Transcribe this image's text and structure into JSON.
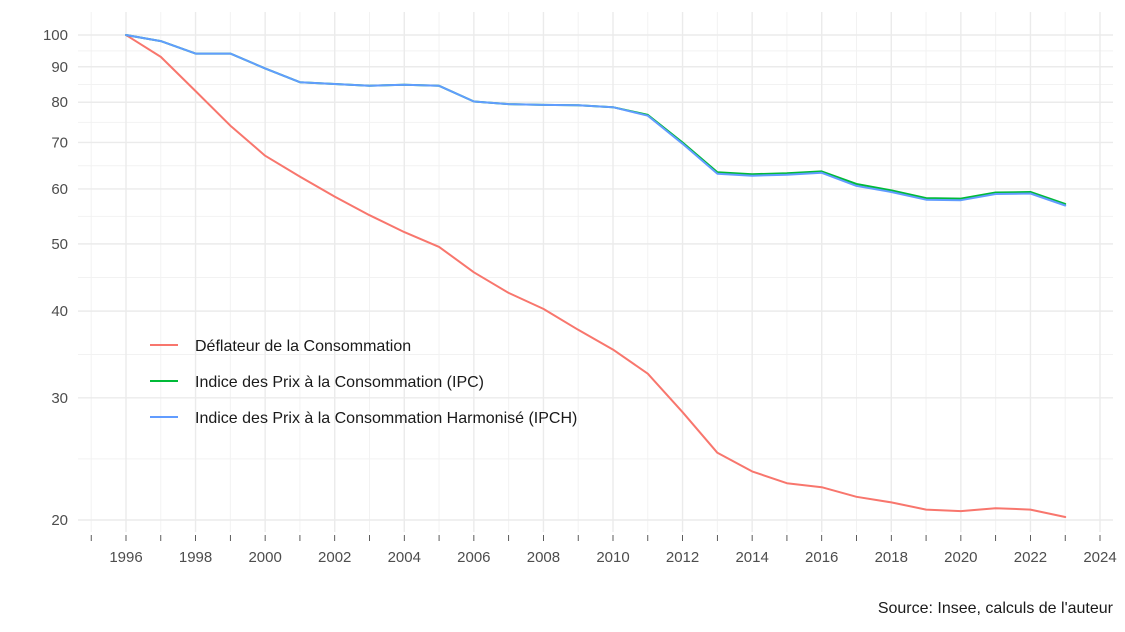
{
  "chart_data": {
    "type": "line",
    "title": "",
    "xlabel": "",
    "ylabel": "",
    "y_scale": "log",
    "xlim": [
      1995,
      2024.5
    ],
    "ylim": [
      19,
      106
    ],
    "x_ticks": [
      1996,
      1998,
      2000,
      2002,
      2004,
      2006,
      2008,
      2010,
      2012,
      2014,
      2016,
      2018,
      2020,
      2022,
      2024
    ],
    "y_ticks": [
      20,
      30,
      40,
      50,
      60,
      70,
      80,
      90,
      100
    ],
    "grid": true,
    "legend_position": "left-middle",
    "x": [
      1996,
      1997,
      1998,
      1999,
      2000,
      2001,
      2002,
      2003,
      2004,
      2005,
      2006,
      2007,
      2008,
      2009,
      2010,
      2011,
      2012,
      2013,
      2014,
      2015,
      2016,
      2017,
      2018,
      2019,
      2020,
      2021,
      2022,
      2023
    ],
    "series": [
      {
        "name": "Déflateur de la Consommation",
        "color": "#f8766d",
        "values": [
          100,
          93,
          83,
          74,
          67,
          62.5,
          58.5,
          55,
          52,
          49.5,
          45.5,
          42.5,
          40.3,
          37.6,
          35.2,
          32.5,
          28.6,
          25,
          23.5,
          22.6,
          22.3,
          21.6,
          21.2,
          20.7,
          20.6,
          20.8,
          20.7,
          20.2
        ]
      },
      {
        "name": "Indice des Prix à la Consommation (IPC)",
        "color": "#00ba38",
        "values": [
          100,
          98,
          94,
          94,
          89.5,
          85.5,
          85,
          84.5,
          84.8,
          84.5,
          80.2,
          79.5,
          79.3,
          79.2,
          78.7,
          76.7,
          70,
          63.4,
          63,
          63.2,
          63.6,
          61,
          59.7,
          58.2,
          58.1,
          59.3,
          59.4,
          57.1
        ]
      },
      {
        "name": "Indice des Prix à la Consommation Harmonisé (IPCH)",
        "color": "#619cff",
        "values": [
          100,
          98,
          94,
          94,
          89.5,
          85.5,
          85,
          84.5,
          84.8,
          84.5,
          80.2,
          79.5,
          79.3,
          79.2,
          78.7,
          76.5,
          69.7,
          63.1,
          62.7,
          62.9,
          63.3,
          60.6,
          59.4,
          57.9,
          57.8,
          59,
          59.1,
          56.8
        ]
      }
    ]
  },
  "caption": "Source: Insee, calculs de l'auteur"
}
